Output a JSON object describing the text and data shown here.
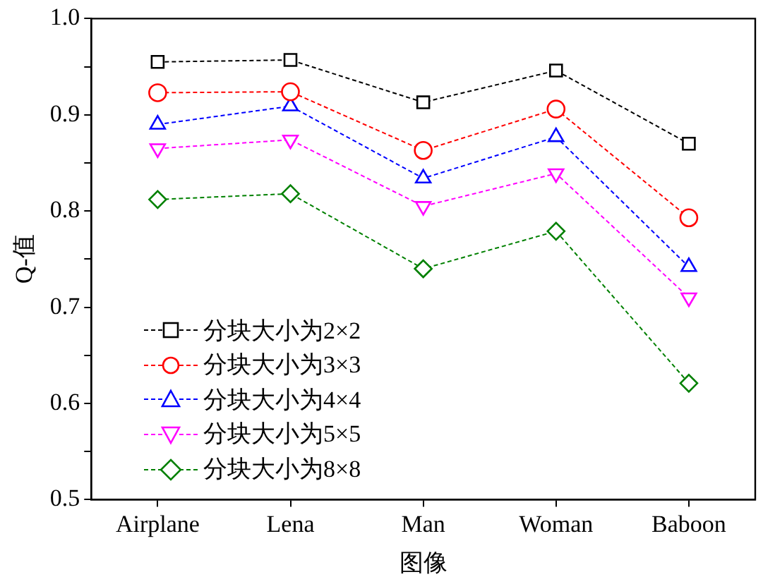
{
  "chart_data": {
    "type": "line",
    "xlabel": "图像",
    "ylabel": "Q-值",
    "categories": [
      "Airplane",
      "Lena",
      "Man",
      "Woman",
      "Baboon"
    ],
    "series": [
      {
        "name": "分块大小为2×2",
        "color": "#000000",
        "marker": "square",
        "values": [
          0.955,
          0.957,
          0.913,
          0.946,
          0.87
        ]
      },
      {
        "name": "分块大小为3×3",
        "color": "#ff0000",
        "marker": "circle",
        "values": [
          0.923,
          0.924,
          0.863,
          0.906,
          0.793
        ]
      },
      {
        "name": "分块大小为4×4",
        "color": "#0000ff",
        "marker": "triangle",
        "values": [
          0.89,
          0.909,
          0.834,
          0.877,
          0.742
        ]
      },
      {
        "name": "分块大小为5×5",
        "color": "#ff00ff",
        "marker": "triangle-down",
        "values": [
          0.865,
          0.874,
          0.805,
          0.839,
          0.71
        ]
      },
      {
        "name": "分块大小为8×8",
        "color": "#008000",
        "marker": "diamond",
        "values": [
          0.812,
          0.818,
          0.74,
          0.779,
          0.621
        ]
      }
    ],
    "ylim": [
      0.5,
      1.0
    ],
    "yticks": [
      {
        "value": 0.5,
        "label": "0.5"
      },
      {
        "value": 0.55,
        "label": null
      },
      {
        "value": 0.6,
        "label": "0.6"
      },
      {
        "value": 0.65,
        "label": null
      },
      {
        "value": 0.7,
        "label": "0.7"
      },
      {
        "value": 0.75,
        "label": null
      },
      {
        "value": 0.8,
        "label": "0.8"
      },
      {
        "value": 0.85,
        "label": null
      },
      {
        "value": 0.9,
        "label": "0.9"
      },
      {
        "value": 0.95,
        "label": null
      },
      {
        "value": 1.0,
        "label": "1.0"
      }
    ],
    "grid": false,
    "legend": "bottom left",
    "line_style": "dashed"
  }
}
